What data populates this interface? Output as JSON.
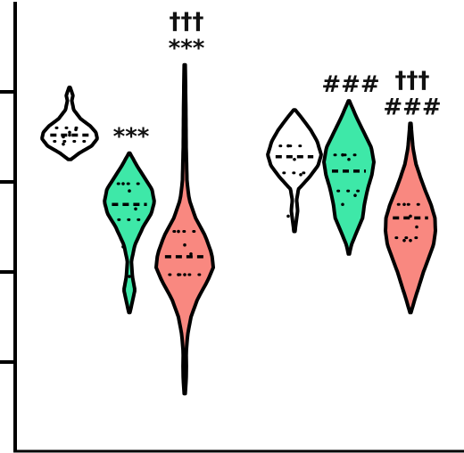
{
  "chart_data": {
    "type": "violin",
    "title": "",
    "xlabel": "",
    "ylabel": "",
    "ylim": [
      0,
      5
    ],
    "yticks": [
      1,
      2,
      3,
      4
    ],
    "grid": false,
    "legend": "none",
    "groups": [
      {
        "violins": [
          {
            "color": "#ffffff",
            "y_min": 3.25,
            "y_max": 4.05,
            "median": 3.52,
            "q1": 3.45,
            "q3": 3.6,
            "points": [
              3.42,
              3.52,
              3.58,
              3.5,
              3.55
            ],
            "profile": [
              [
                3.25,
                0.05
              ],
              [
                3.32,
                0.35
              ],
              [
                3.4,
                0.8
              ],
              [
                3.48,
                1.0
              ],
              [
                3.55,
                0.95
              ],
              [
                3.62,
                0.75
              ],
              [
                3.7,
                0.4
              ],
              [
                3.8,
                0.15
              ],
              [
                3.9,
                0.08
              ],
              [
                3.96,
                0.12
              ],
              [
                4.05,
                0.02
              ]
            ],
            "significance": []
          },
          {
            "color": "#3ee8a8",
            "y_min": 1.55,
            "y_max": 3.32,
            "median": 2.75,
            "q1": 2.58,
            "q3": 2.98,
            "points": [
              2.98,
              2.9,
              2.7,
              2.28,
              1.95
            ],
            "profile": [
              [
                1.55,
                0.02
              ],
              [
                1.62,
                0.08
              ],
              [
                1.8,
                0.22
              ],
              [
                1.95,
                0.12
              ],
              [
                2.12,
                0.08
              ],
              [
                2.3,
                0.22
              ],
              [
                2.5,
                0.55
              ],
              [
                2.65,
                0.88
              ],
              [
                2.78,
                1.0
              ],
              [
                2.92,
                0.9
              ],
              [
                3.05,
                0.6
              ],
              [
                3.18,
                0.3
              ],
              [
                3.32,
                0.02
              ]
            ],
            "significance": [
              "***"
            ]
          },
          {
            "color": "#f98880",
            "y_min": 0.65,
            "y_max": 4.3,
            "median": 2.17,
            "q1": 1.97,
            "q3": 2.45,
            "points": [
              2.45,
              2.3,
              2.2,
              1.97,
              1.97
            ],
            "profile": [
              [
                0.65,
                0.02
              ],
              [
                0.8,
                0.05
              ],
              [
                0.95,
                0.06
              ],
              [
                1.1,
                0.05
              ],
              [
                1.3,
                0.1
              ],
              [
                1.5,
                0.22
              ],
              [
                1.7,
                0.45
              ],
              [
                1.9,
                0.8
              ],
              [
                2.05,
                1.0
              ],
              [
                2.2,
                0.95
              ],
              [
                2.4,
                0.72
              ],
              [
                2.6,
                0.38
              ],
              [
                2.8,
                0.16
              ],
              [
                3.0,
                0.08
              ],
              [
                3.4,
                0.05
              ],
              [
                3.8,
                0.04
              ],
              [
                4.3,
                0.02
              ]
            ],
            "significance": [
              "†††",
              "***"
            ]
          }
        ]
      },
      {
        "violins": [
          {
            "color": "#ffffff",
            "y_min": 2.45,
            "y_max": 3.8,
            "median": 3.28,
            "q1": 3.1,
            "q3": 3.4,
            "points": [
              3.4,
              3.25,
              3.08,
              2.62
            ],
            "profile": [
              [
                2.45,
                0.02
              ],
              [
                2.55,
                0.06
              ],
              [
                2.68,
                0.12
              ],
              [
                2.8,
                0.08
              ],
              [
                2.92,
                0.15
              ],
              [
                3.05,
                0.55
              ],
              [
                3.18,
                0.88
              ],
              [
                3.3,
                1.0
              ],
              [
                3.45,
                0.85
              ],
              [
                3.58,
                0.6
              ],
              [
                3.7,
                0.3
              ],
              [
                3.8,
                0.03
              ]
            ],
            "significance": []
          },
          {
            "color": "#3ee8a8",
            "y_min": 2.2,
            "y_max": 3.9,
            "median": 3.12,
            "q1": 2.9,
            "q3": 3.3,
            "points": [
              3.3,
              3.25,
              2.85,
              2.75
            ],
            "profile": [
              [
                2.2,
                0.02
              ],
              [
                2.3,
                0.1
              ],
              [
                2.45,
                0.32
              ],
              [
                2.6,
                0.55
              ],
              [
                2.75,
                0.62
              ],
              [
                2.92,
                0.75
              ],
              [
                3.08,
                0.92
              ],
              [
                3.22,
                1.0
              ],
              [
                3.38,
                0.9
              ],
              [
                3.55,
                0.6
              ],
              [
                3.72,
                0.3
              ],
              [
                3.9,
                0.02
              ]
            ],
            "significance": [
              "###"
            ]
          },
          {
            "color": "#f98880",
            "y_min": 1.55,
            "y_max": 3.65,
            "median": 2.6,
            "q1": 2.38,
            "q3": 2.75,
            "points": [
              2.75,
              2.62,
              2.5,
              2.35,
              2.35
            ],
            "profile": [
              [
                1.55,
                0.02
              ],
              [
                1.7,
                0.18
              ],
              [
                1.85,
                0.35
              ],
              [
                2.0,
                0.52
              ],
              [
                2.15,
                0.72
              ],
              [
                2.3,
                0.92
              ],
              [
                2.45,
                1.0
              ],
              [
                2.6,
                0.98
              ],
              [
                2.75,
                0.82
              ],
              [
                2.9,
                0.6
              ],
              [
                3.05,
                0.4
              ],
              [
                3.2,
                0.22
              ],
              [
                3.38,
                0.1
              ],
              [
                3.55,
                0.05
              ],
              [
                3.65,
                0.02
              ]
            ],
            "significance": [
              "†††",
              "###"
            ]
          }
        ]
      }
    ]
  }
}
